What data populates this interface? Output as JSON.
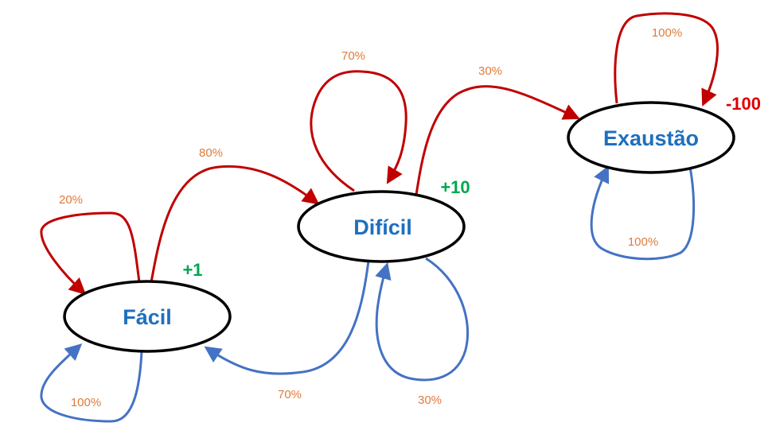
{
  "colors": {
    "state_text": "#1f6fbf",
    "node_stroke": "#000000",
    "red_arrow": "#c00000",
    "blue_arrow": "#4472c4",
    "prob_text": "#e07b39",
    "positive_reward": "#00a651",
    "negative_reward": "#e00000"
  },
  "states": {
    "facil": {
      "label": "Fácil",
      "reward": "+1"
    },
    "dificil": {
      "label": "Difícil",
      "reward": "+10"
    },
    "exaustao": {
      "label": "Exaustão",
      "reward": "-100"
    }
  },
  "transitions": {
    "red": {
      "facil_self": "20%",
      "facil_to_dificil": "80%",
      "dificil_self": "70%",
      "dificil_to_exaustao": "30%",
      "exaustao_self": "100%"
    },
    "blue": {
      "facil_self": "100%",
      "dificil_to_facil": "70%",
      "dificil_self": "30%",
      "exaustao_self": "100%"
    }
  }
}
